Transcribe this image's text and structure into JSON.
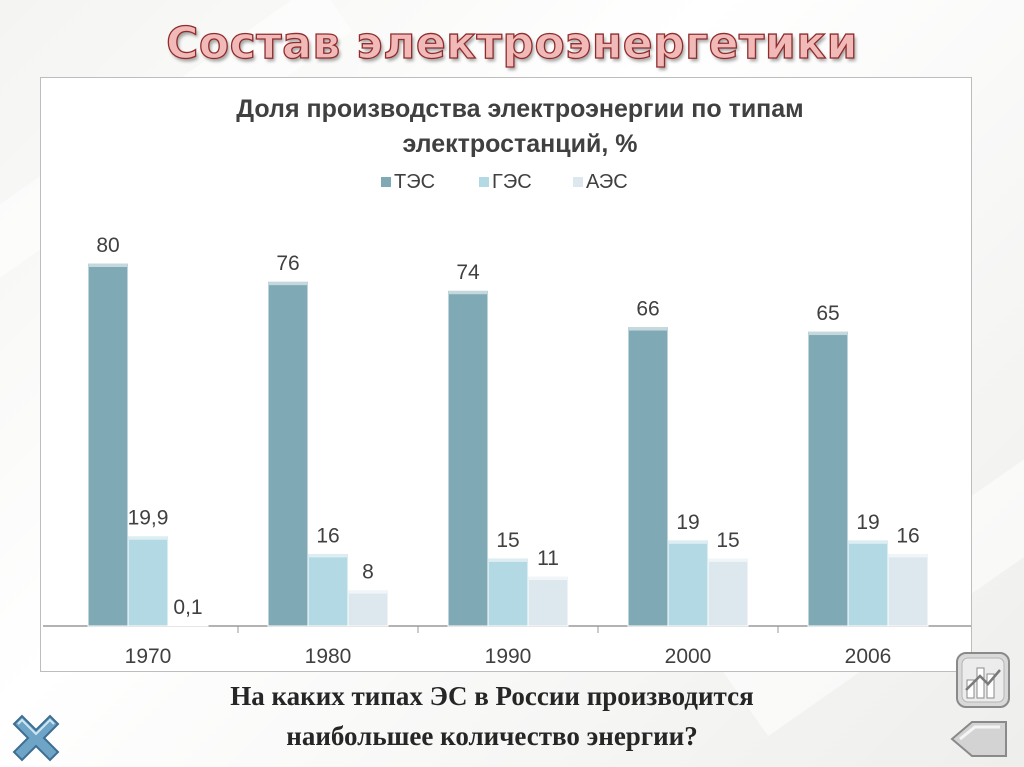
{
  "slide": {
    "title": "Состав электроэнергетики",
    "question_line1": "На каких типах ЭС в России производится",
    "question_line2": "наибольшее количество энергии?"
  },
  "chart_data": {
    "type": "bar",
    "title_line1": "Доля производства электроэнергии по типам",
    "title_line2": "электростанций, %",
    "categories": [
      "1970",
      "1980",
      "1990",
      "2000",
      "2006"
    ],
    "series": [
      {
        "name": "ТЭС",
        "values": [
          80,
          76,
          74,
          66,
          65
        ],
        "labels": [
          "80",
          "76",
          "74",
          "66",
          "65"
        ],
        "color": "#7fa9b4"
      },
      {
        "name": "ГЭС",
        "values": [
          19.9,
          16,
          15,
          19,
          19
        ],
        "labels": [
          "19,9",
          "16",
          "15",
          "19",
          "19"
        ],
        "color": "#b3d9e4"
      },
      {
        "name": "АЭС",
        "values": [
          0.1,
          8,
          11,
          15,
          16
        ],
        "labels": [
          "0,1",
          "8",
          "11",
          "15",
          "16"
        ],
        "color": "#dde8ee"
      }
    ],
    "ylim": [
      0,
      80
    ],
    "legend_position": "top",
    "grid": false
  },
  "colors": {
    "title_fill": "#f1b9b7",
    "title_stroke": "#8f2c2c",
    "question_text": "#262626"
  },
  "icons": {
    "close": "close-x-icon",
    "chart": "bar-chart-icon",
    "back": "back-arrow-icon"
  }
}
